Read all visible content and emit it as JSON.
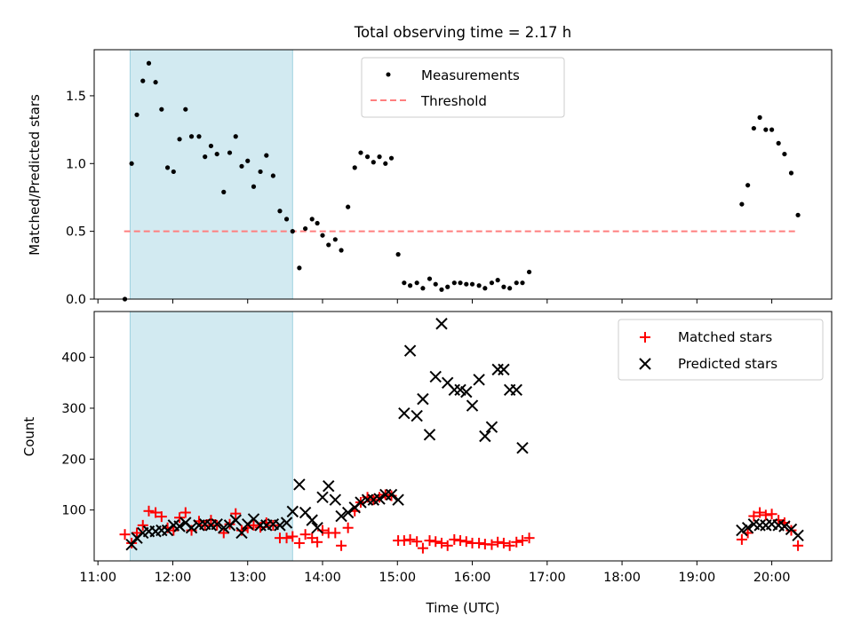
{
  "figure": {
    "title": "Total observing time = 2.17 h"
  },
  "chart_data": [
    {
      "type": "scatter",
      "title": "Total observing time = 2.17 h",
      "xlabel": "",
      "ylabel": "Matched/Predicted stars",
      "xlim": [
        10.95,
        20.8
      ],
      "ylim": [
        0,
        1.84
      ],
      "yticks": [
        0.0,
        0.5,
        1.0,
        1.5
      ],
      "ytick_labels": [
        "0.0",
        "0.5",
        "1.0",
        "1.5"
      ],
      "xticks": [
        11,
        12,
        13,
        14,
        15,
        16,
        17,
        18,
        19,
        20
      ],
      "shaded_span": [
        11.43,
        13.6
      ],
      "shade_color": "#add8e6",
      "legend": {
        "position": "upper center",
        "entries": [
          "Measurements",
          "Threshold"
        ]
      },
      "threshold": {
        "name": "Threshold",
        "y": 0.5,
        "x": [
          11.35,
          20.35
        ],
        "color": "#ff7f7f",
        "style": "dashed"
      },
      "series": [
        {
          "name": "Measurements",
          "marker": "dot",
          "color": "#000000",
          "points": [
            [
              11.36,
              0.0
            ],
            [
              11.45,
              1.0
            ],
            [
              11.52,
              1.36
            ],
            [
              11.6,
              1.61
            ],
            [
              11.68,
              1.74
            ],
            [
              11.77,
              1.6
            ],
            [
              11.85,
              1.4
            ],
            [
              11.93,
              0.97
            ],
            [
              12.01,
              0.94
            ],
            [
              12.09,
              1.18
            ],
            [
              12.17,
              1.4
            ],
            [
              12.25,
              1.2
            ],
            [
              12.35,
              1.2
            ],
            [
              12.43,
              1.05
            ],
            [
              12.51,
              1.13
            ],
            [
              12.59,
              1.07
            ],
            [
              12.68,
              0.79
            ],
            [
              12.76,
              1.08
            ],
            [
              12.84,
              1.2
            ],
            [
              12.92,
              0.98
            ],
            [
              13.0,
              1.02
            ],
            [
              13.08,
              0.83
            ],
            [
              13.17,
              0.94
            ],
            [
              13.25,
              1.06
            ],
            [
              13.34,
              0.91
            ],
            [
              13.43,
              0.65
            ],
            [
              13.52,
              0.59
            ],
            [
              13.6,
              0.5
            ],
            [
              13.69,
              0.23
            ],
            [
              13.77,
              0.52
            ],
            [
              13.86,
              0.59
            ],
            [
              13.93,
              0.56
            ],
            [
              14.0,
              0.47
            ],
            [
              14.08,
              0.4
            ],
            [
              14.17,
              0.44
            ],
            [
              14.25,
              0.36
            ],
            [
              14.34,
              0.68
            ],
            [
              14.43,
              0.97
            ],
            [
              14.51,
              1.08
            ],
            [
              14.6,
              1.05
            ],
            [
              14.68,
              1.01
            ],
            [
              14.76,
              1.05
            ],
            [
              14.84,
              1.0
            ],
            [
              14.92,
              1.04
            ],
            [
              15.01,
              0.33
            ],
            [
              15.09,
              0.12
            ],
            [
              15.17,
              0.1
            ],
            [
              15.26,
              0.12
            ],
            [
              15.34,
              0.08
            ],
            [
              15.43,
              0.15
            ],
            [
              15.51,
              0.11
            ],
            [
              15.59,
              0.07
            ],
            [
              15.67,
              0.09
            ],
            [
              15.76,
              0.12
            ],
            [
              15.84,
              0.12
            ],
            [
              15.92,
              0.11
            ],
            [
              16.0,
              0.11
            ],
            [
              16.09,
              0.1
            ],
            [
              16.17,
              0.08
            ],
            [
              16.26,
              0.12
            ],
            [
              16.34,
              0.14
            ],
            [
              16.42,
              0.09
            ],
            [
              16.5,
              0.08
            ],
            [
              16.59,
              0.12
            ],
            [
              16.67,
              0.12
            ],
            [
              16.76,
              0.2
            ],
            [
              19.6,
              0.7
            ],
            [
              19.68,
              0.84
            ],
            [
              19.76,
              1.26
            ],
            [
              19.84,
              1.34
            ],
            [
              19.92,
              1.25
            ],
            [
              20.0,
              1.25
            ],
            [
              20.09,
              1.15
            ],
            [
              20.17,
              1.07
            ],
            [
              20.26,
              0.93
            ],
            [
              20.35,
              0.62
            ]
          ]
        }
      ]
    },
    {
      "type": "scatter",
      "title": "",
      "xlabel": "Time (UTC)",
      "ylabel": "Count",
      "xlim": [
        10.95,
        20.8
      ],
      "ylim": [
        0,
        490
      ],
      "yticks": [
        100,
        200,
        300,
        400
      ],
      "ytick_labels": [
        "100",
        "200",
        "300",
        "400"
      ],
      "xticks": [
        11,
        12,
        13,
        14,
        15,
        16,
        17,
        18,
        19,
        20
      ],
      "xtick_labels": [
        "11:00",
        "12:00",
        "13:00",
        "14:00",
        "15:00",
        "16:00",
        "17:00",
        "18:00",
        "19:00",
        "20:00"
      ],
      "shaded_span": [
        11.43,
        13.6
      ],
      "shade_color": "#add8e6",
      "legend": {
        "position": "upper right",
        "entries": [
          "Matched stars",
          "Predicted stars"
        ]
      },
      "series": [
        {
          "name": "Matched stars",
          "marker": "plus",
          "color": "#ff0000",
          "points": [
            [
              11.36,
              52
            ],
            [
              11.45,
              35
            ],
            [
              11.52,
              55
            ],
            [
              11.6,
              70
            ],
            [
              11.68,
              98
            ],
            [
              11.77,
              95
            ],
            [
              11.85,
              87
            ],
            [
              11.93,
              65
            ],
            [
              12.01,
              60
            ],
            [
              12.09,
              85
            ],
            [
              12.17,
              95
            ],
            [
              12.25,
              60
            ],
            [
              12.35,
              78
            ],
            [
              12.43,
              70
            ],
            [
              12.51,
              80
            ],
            [
              12.59,
              70
            ],
            [
              12.68,
              55
            ],
            [
              12.76,
              72
            ],
            [
              12.84,
              93
            ],
            [
              12.92,
              60
            ],
            [
              13.0,
              65
            ],
            [
              13.08,
              70
            ],
            [
              13.17,
              66
            ],
            [
              13.25,
              75
            ],
            [
              13.34,
              70
            ],
            [
              13.43,
              45
            ],
            [
              13.52,
              45
            ],
            [
              13.6,
              48
            ],
            [
              13.69,
              35
            ],
            [
              13.77,
              52
            ],
            [
              13.86,
              45
            ],
            [
              13.93,
              37
            ],
            [
              14.0,
              60
            ],
            [
              14.08,
              55
            ],
            [
              14.17,
              55
            ],
            [
              14.25,
              30
            ],
            [
              14.34,
              65
            ],
            [
              14.43,
              98
            ],
            [
              14.51,
              115
            ],
            [
              14.6,
              125
            ],
            [
              14.68,
              120
            ],
            [
              14.76,
              125
            ],
            [
              14.84,
              130
            ],
            [
              14.92,
              128
            ],
            [
              15.01,
              40
            ],
            [
              15.09,
              40
            ],
            [
              15.17,
              42
            ],
            [
              15.26,
              38
            ],
            [
              15.34,
              25
            ],
            [
              15.43,
              40
            ],
            [
              15.51,
              38
            ],
            [
              15.59,
              35
            ],
            [
              15.67,
              30
            ],
            [
              15.76,
              42
            ],
            [
              15.84,
              40
            ],
            [
              15.92,
              38
            ],
            [
              16.0,
              35
            ],
            [
              16.09,
              35
            ],
            [
              16.17,
              33
            ],
            [
              16.26,
              32
            ],
            [
              16.34,
              37
            ],
            [
              16.42,
              35
            ],
            [
              16.5,
              30
            ],
            [
              16.59,
              37
            ],
            [
              16.67,
              40
            ],
            [
              16.76,
              45
            ],
            [
              19.6,
              42
            ],
            [
              19.68,
              55
            ],
            [
              19.76,
              88
            ],
            [
              19.84,
              95
            ],
            [
              19.92,
              90
            ],
            [
              20.0,
              92
            ],
            [
              20.09,
              80
            ],
            [
              20.17,
              75
            ],
            [
              20.26,
              60
            ],
            [
              20.35,
              30
            ]
          ]
        },
        {
          "name": "Predicted stars",
          "marker": "x",
          "color": "#000000",
          "points": [
            [
              11.45,
              32
            ],
            [
              11.52,
              45
            ],
            [
              11.6,
              55
            ],
            [
              11.68,
              58
            ],
            [
              11.77,
              58
            ],
            [
              11.85,
              60
            ],
            [
              11.93,
              60
            ],
            [
              12.01,
              70
            ],
            [
              12.09,
              68
            ],
            [
              12.17,
              75
            ],
            [
              12.25,
              65
            ],
            [
              12.35,
              70
            ],
            [
              12.43,
              72
            ],
            [
              12.51,
              70
            ],
            [
              12.59,
              72
            ],
            [
              12.68,
              65
            ],
            [
              12.76,
              70
            ],
            [
              12.84,
              80
            ],
            [
              12.92,
              55
            ],
            [
              13.0,
              72
            ],
            [
              13.08,
              82
            ],
            [
              13.17,
              70
            ],
            [
              13.25,
              70
            ],
            [
              13.34,
              72
            ],
            [
              13.43,
              70
            ],
            [
              13.52,
              75
            ],
            [
              13.6,
              97
            ],
            [
              13.69,
              150
            ],
            [
              13.77,
              95
            ],
            [
              13.86,
              80
            ],
            [
              13.93,
              65
            ],
            [
              14.0,
              125
            ],
            [
              14.08,
              147
            ],
            [
              14.17,
              120
            ],
            [
              14.25,
              88
            ],
            [
              14.34,
              95
            ],
            [
              14.43,
              105
            ],
            [
              14.51,
              115
            ],
            [
              14.6,
              120
            ],
            [
              14.68,
              120
            ],
            [
              14.76,
              122
            ],
            [
              14.84,
              130
            ],
            [
              14.92,
              130
            ],
            [
              15.01,
              120
            ],
            [
              15.09,
              290
            ],
            [
              15.17,
              413
            ],
            [
              15.26,
              285
            ],
            [
              15.34,
              318
            ],
            [
              15.43,
              248
            ],
            [
              15.51,
              362
            ],
            [
              15.59,
              466
            ],
            [
              15.67,
              350
            ],
            [
              15.76,
              336
            ],
            [
              15.84,
              336
            ],
            [
              15.92,
              332
            ],
            [
              16.0,
              305
            ],
            [
              16.09,
              356
            ],
            [
              16.17,
              245
            ],
            [
              16.26,
              263
            ],
            [
              16.34,
              376
            ],
            [
              16.42,
              376
            ],
            [
              16.5,
              336
            ],
            [
              16.59,
              336
            ],
            [
              16.67,
              222
            ],
            [
              19.6,
              60
            ],
            [
              19.68,
              65
            ],
            [
              19.76,
              72
            ],
            [
              19.84,
              70
            ],
            [
              19.92,
              70
            ],
            [
              20.0,
              72
            ],
            [
              20.09,
              70
            ],
            [
              20.17,
              68
            ],
            [
              20.26,
              62
            ],
            [
              20.35,
              50
            ]
          ]
        }
      ]
    }
  ]
}
